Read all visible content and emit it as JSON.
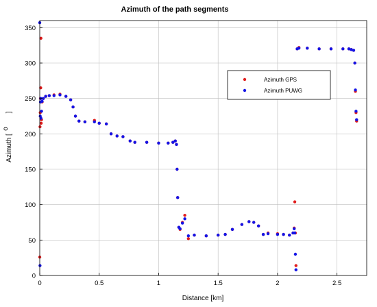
{
  "chart_data": {
    "type": "scatter",
    "title": "Azimuth of the path segments",
    "xlabel": "Distance [km]",
    "ylabel_parts": [
      "Azimuth [",
      "o",
      "]"
    ],
    "xlim": [
      0,
      2.75
    ],
    "ylim": [
      0,
      360
    ],
    "xticks": [
      0,
      0.5,
      1,
      1.5,
      2,
      2.5
    ],
    "xtick_labels": [
      "0",
      "0.5",
      "1",
      "1.5",
      "2",
      "2.5"
    ],
    "yticks": [
      0,
      50,
      100,
      150,
      200,
      250,
      300,
      350
    ],
    "ytick_labels": [
      "0",
      "50",
      "100",
      "150",
      "200",
      "250",
      "300",
      "350"
    ],
    "grid": true,
    "legend_position": "upper-right",
    "colors": {
      "gps": "#e11d1d",
      "puwg": "#1414e6"
    },
    "series": [
      {
        "name": "Azimuth GPS",
        "color": "#e11d1d",
        "x": [
          0.0,
          0.002,
          0.004,
          0.006,
          0.008,
          0.01,
          0.012,
          0.015,
          0.02,
          0.03,
          0.05,
          0.08,
          0.12,
          0.17,
          0.22,
          0.26,
          0.28,
          0.3,
          0.33,
          0.38,
          0.46,
          0.5,
          0.56,
          0.6,
          0.65,
          0.7,
          0.76,
          0.8,
          0.9,
          1.0,
          1.08,
          1.12,
          1.14,
          1.15,
          1.155,
          1.16,
          1.17,
          1.18,
          1.2,
          1.22,
          1.25,
          1.3,
          1.4,
          1.5,
          1.56,
          1.62,
          1.7,
          1.76,
          1.8,
          1.84,
          1.88,
          1.92,
          2.0,
          2.05,
          2.1,
          2.13,
          2.14,
          2.145,
          2.15,
          2.155,
          2.165,
          2.18,
          2.25,
          2.35,
          2.45,
          2.55,
          2.6,
          2.62,
          2.64,
          2.65,
          2.655,
          2.66,
          2.665
        ],
        "y": [
          26,
          210,
          230,
          250,
          265,
          335,
          215,
          220,
          245,
          250,
          253,
          254,
          255,
          256,
          253,
          248,
          238,
          225,
          218,
          217,
          219,
          215,
          214,
          200,
          197,
          196,
          190,
          188,
          188,
          187,
          187,
          188,
          190,
          185,
          150,
          110,
          68,
          65,
          75,
          85,
          52,
          57,
          56,
          57,
          58,
          65,
          72,
          76,
          75,
          70,
          58,
          60,
          59,
          58,
          57,
          60,
          67,
          104,
          60,
          14,
          320,
          322,
          321,
          320,
          320,
          320,
          320,
          319,
          318,
          300,
          260,
          230,
          218
        ]
      },
      {
        "name": "Azimuth PUWG",
        "color": "#1414e6",
        "x": [
          0.0,
          0.002,
          0.004,
          0.006,
          0.008,
          0.01,
          0.015,
          0.02,
          0.03,
          0.05,
          0.08,
          0.12,
          0.17,
          0.22,
          0.26,
          0.28,
          0.3,
          0.33,
          0.38,
          0.46,
          0.5,
          0.56,
          0.6,
          0.65,
          0.7,
          0.76,
          0.8,
          0.9,
          1.0,
          1.08,
          1.12,
          1.14,
          1.15,
          1.155,
          1.16,
          1.17,
          1.18,
          1.2,
          1.22,
          1.25,
          1.3,
          1.4,
          1.5,
          1.56,
          1.62,
          1.7,
          1.76,
          1.8,
          1.84,
          1.88,
          1.92,
          2.0,
          2.05,
          2.1,
          2.13,
          2.14,
          2.145,
          2.15,
          2.155,
          2.165,
          2.18,
          2.25,
          2.35,
          2.45,
          2.55,
          2.6,
          2.62,
          2.64,
          2.65,
          2.655,
          2.66,
          2.665
        ],
        "y": [
          357,
          14,
          225,
          245,
          250,
          222,
          232,
          246,
          250,
          253,
          254,
          254,
          255,
          253,
          248,
          238,
          225,
          218,
          217,
          217,
          215,
          214,
          200,
          197,
          196,
          190,
          188,
          188,
          187,
          187,
          188,
          190,
          185,
          150,
          110,
          68,
          66,
          74,
          80,
          56,
          57,
          56,
          57,
          58,
          65,
          72,
          76,
          75,
          70,
          58,
          59,
          58,
          58,
          57,
          60,
          66,
          60,
          30,
          8,
          320,
          321,
          321,
          320,
          320,
          320,
          320,
          319,
          318,
          300,
          262,
          232,
          220
        ]
      }
    ]
  }
}
